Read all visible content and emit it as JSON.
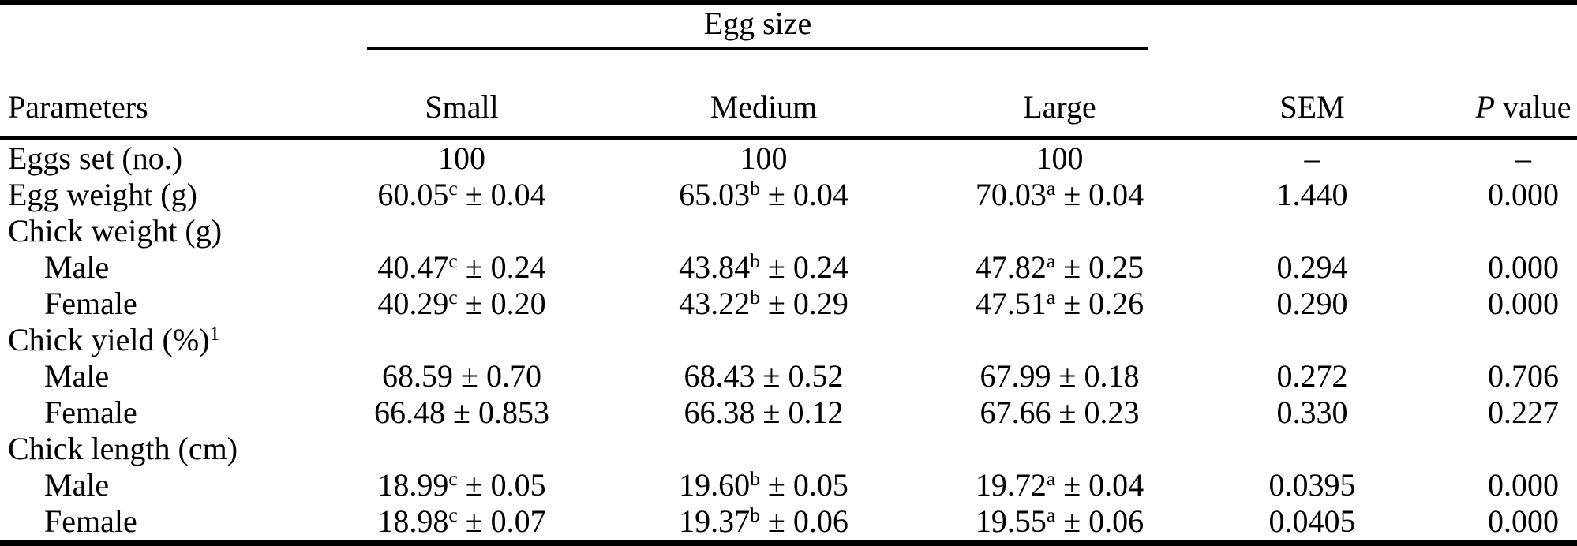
{
  "table": {
    "spanner_label": "Egg size",
    "columns": {
      "parameters": "Parameters",
      "small": "Small",
      "medium": "Medium",
      "large": "Large",
      "sem": "SEM",
      "p_italic": "P",
      "p_rest": " value"
    },
    "rows": [
      {
        "param": "Eggs set (no.)",
        "indent": false,
        "cells": [
          {
            "v": "100"
          },
          {
            "v": "100"
          },
          {
            "v": "100"
          },
          {
            "v": "–"
          },
          {
            "v": "–"
          }
        ]
      },
      {
        "param": "Egg weight (g)",
        "indent": false,
        "cells": [
          {
            "v": "60.05",
            "s": "c",
            "r": " ± 0.04"
          },
          {
            "v": "65.03",
            "s": "b",
            "r": " ± 0.04"
          },
          {
            "v": "70.03",
            "s": "a",
            "r": " ± 0.04"
          },
          {
            "v": "1.440"
          },
          {
            "v": "0.000"
          }
        ]
      },
      {
        "param": "Chick weight (g)",
        "indent": false,
        "cells": []
      },
      {
        "param": "Male",
        "indent": true,
        "cells": [
          {
            "v": "40.47",
            "s": "c",
            "r": " ± 0.24"
          },
          {
            "v": "43.84",
            "s": "b",
            "r": " ± 0.24"
          },
          {
            "v": "47.82",
            "s": "a",
            "r": " ± 0.25"
          },
          {
            "v": "0.294"
          },
          {
            "v": "0.000"
          }
        ]
      },
      {
        "param": "Female",
        "indent": true,
        "cells": [
          {
            "v": "40.29",
            "s": "c",
            "r": " ± 0.20"
          },
          {
            "v": "43.22",
            "s": "b",
            "r": " ± 0.29"
          },
          {
            "v": "47.51",
            "s": "a",
            "r": " ± 0.26"
          },
          {
            "v": "0.290"
          },
          {
            "v": "0.000"
          }
        ]
      },
      {
        "param": "Chick yield (%)",
        "param_sup": "1",
        "indent": false,
        "cells": []
      },
      {
        "param": "Male",
        "indent": true,
        "cells": [
          {
            "v": "68.59 ± 0.70"
          },
          {
            "v": "68.43 ± 0.52"
          },
          {
            "v": "67.99 ± 0.18"
          },
          {
            "v": "0.272"
          },
          {
            "v": "0.706"
          }
        ]
      },
      {
        "param": "Female",
        "indent": true,
        "cells": [
          {
            "v": "66.48 ± 0.853"
          },
          {
            "v": "66.38 ± 0.12"
          },
          {
            "v": "67.66 ± 0.23"
          },
          {
            "v": "0.330"
          },
          {
            "v": "0.227"
          }
        ]
      },
      {
        "param": "Chick length (cm)",
        "indent": false,
        "cells": []
      },
      {
        "param": "Male",
        "indent": true,
        "cells": [
          {
            "v": "18.99",
            "s": "c",
            "r": " ± 0.05"
          },
          {
            "v": "19.60",
            "s": "b",
            "r": " ± 0.05"
          },
          {
            "v": "19.72",
            "s": "a",
            "r": " ± 0.04"
          },
          {
            "v": "0.0395"
          },
          {
            "v": "0.000"
          }
        ]
      },
      {
        "param": "Female",
        "indent": true,
        "cells": [
          {
            "v": "18.98",
            "s": "c",
            "r": " ± 0.07"
          },
          {
            "v": "19.37",
            "s": "b",
            "r": " ± 0.06"
          },
          {
            "v": "19.55",
            "s": "a",
            "r": " ± 0.06"
          },
          {
            "v": "0.0405"
          },
          {
            "v": "0.000"
          }
        ]
      }
    ]
  }
}
